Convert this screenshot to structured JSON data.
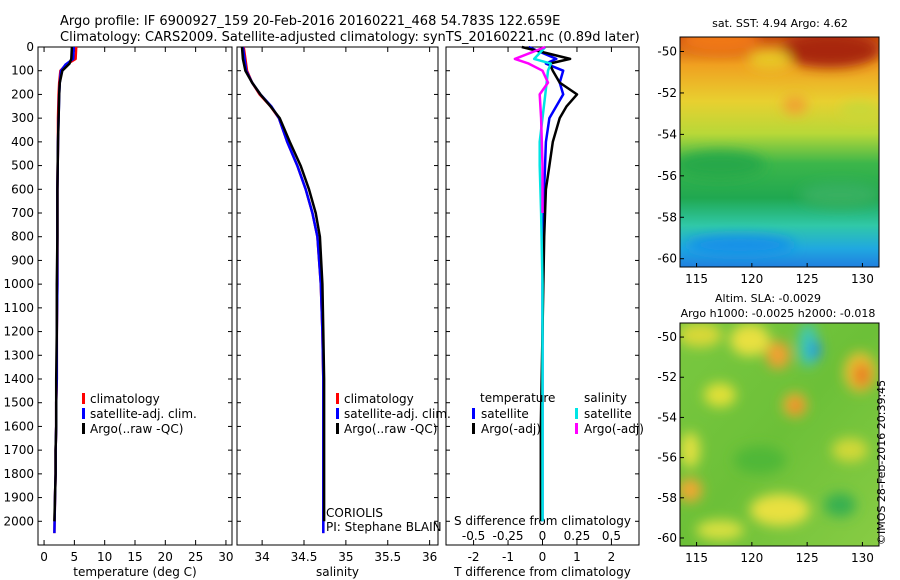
{
  "header": {
    "line1": "Argo profile: IF 6900927_159 20-Feb-2016 20160221_468 54.783S 122.659E",
    "line2": "Climatology: CARS2009. Satellite-adjusted climatology: synTS_20160221.nc (0.89d later)"
  },
  "colors": {
    "climatology": "#ff0000",
    "satellite": "#0000ff",
    "argo": "#000000",
    "sal_satellite": "#00e5e5",
    "sal_argo": "#ff00ff"
  },
  "chart_data": [
    {
      "id": "temperature",
      "type": "line",
      "xlabel": "temperature (deg C)",
      "xlim": [
        -1,
        31
      ],
      "xticks": [
        0,
        5,
        10,
        15,
        20,
        25,
        30
      ],
      "ylim": [
        0,
        2100
      ],
      "yticks": [
        0,
        100,
        200,
        300,
        400,
        500,
        600,
        700,
        800,
        900,
        1000,
        1100,
        1200,
        1300,
        1400,
        1500,
        1600,
        1700,
        1800,
        1900,
        2000
      ],
      "legend": [
        "climatology",
        "satellite-adj. clim.",
        "Argo(..raw -QC)"
      ],
      "series": [
        {
          "name": "climatology",
          "color": "#ff0000",
          "x": [
            5.3,
            5.2,
            3.6,
            2.7,
            2.5,
            2.4,
            2.3,
            2.3,
            2.2,
            2.2,
            2.2,
            2.1,
            2.1,
            2.0,
            2.0,
            1.9,
            1.9,
            1.8,
            1.7
          ],
          "y": [
            0,
            50,
            75,
            100,
            150,
            200,
            300,
            400,
            600,
            800,
            1000,
            1200,
            1400,
            1500,
            1600,
            1700,
            1800,
            1900,
            2050
          ]
        },
        {
          "name": "satellite",
          "color": "#0000ff",
          "x": [
            4.9,
            4.8,
            3.5,
            2.8,
            2.6,
            2.5,
            2.4,
            2.3,
            2.2,
            2.2,
            2.2,
            2.1,
            2.1,
            2.0,
            2.0,
            1.9,
            1.9,
            1.8,
            1.7
          ],
          "y": [
            0,
            50,
            75,
            100,
            150,
            200,
            300,
            400,
            600,
            800,
            1000,
            1200,
            1400,
            1500,
            1600,
            1700,
            1800,
            1900,
            2050
          ]
        },
        {
          "name": "argo",
          "color": "#000000",
          "x": [
            4.6,
            4.5,
            4.2,
            3.0,
            2.6,
            2.5,
            2.4,
            2.3,
            2.2,
            2.2,
            2.1,
            2.1,
            2.0,
            2.0,
            1.9,
            1.9,
            1.8,
            1.7
          ],
          "y": [
            0,
            50,
            70,
            100,
            150,
            200,
            300,
            400,
            600,
            800,
            1000,
            1200,
            1400,
            1600,
            1700,
            1800,
            1900,
            2000
          ]
        }
      ]
    },
    {
      "id": "salinity",
      "type": "line",
      "xlabel": "salinity",
      "xlim": [
        33.7,
        36.1
      ],
      "xticks": [
        34,
        34.5,
        35,
        35.5,
        36
      ],
      "xtick_labels": [
        "34",
        "34.5",
        "35",
        "35.5",
        "36"
      ],
      "ylim": [
        0,
        2100
      ],
      "legend": [
        "climatology",
        "satellite-adj. clim.",
        "Argo(..raw -QC)"
      ],
      "annotation": [
        "CORIOLIS",
        "PI: Stephane BLAIN"
      ],
      "series": [
        {
          "name": "climatology",
          "color": "#ff0000",
          "x": [
            33.78,
            33.8,
            33.82,
            33.88,
            33.97,
            34.1,
            34.2,
            34.3,
            34.42,
            34.52,
            34.6,
            34.66,
            34.7,
            34.72,
            34.73,
            34.73,
            34.73,
            34.73
          ],
          "y": [
            0,
            50,
            100,
            150,
            200,
            250,
            300,
            400,
            500,
            600,
            700,
            800,
            1000,
            1200,
            1400,
            1600,
            1800,
            2050
          ]
        },
        {
          "name": "satellite",
          "color": "#0000ff",
          "x": [
            33.77,
            33.79,
            33.81,
            33.88,
            33.98,
            34.11,
            34.2,
            34.3,
            34.42,
            34.52,
            34.6,
            34.66,
            34.7,
            34.72,
            34.73,
            34.73,
            34.73,
            34.73
          ],
          "y": [
            0,
            50,
            100,
            150,
            200,
            250,
            300,
            400,
            500,
            600,
            700,
            800,
            1000,
            1200,
            1400,
            1600,
            1800,
            2050
          ]
        },
        {
          "name": "argo",
          "color": "#000000",
          "x": [
            33.76,
            33.77,
            33.8,
            33.88,
            33.98,
            34.1,
            34.21,
            34.33,
            34.46,
            34.56,
            34.64,
            34.69,
            34.72,
            34.73,
            34.74,
            34.74,
            34.74,
            34.74
          ],
          "y": [
            0,
            50,
            100,
            150,
            200,
            250,
            300,
            400,
            500,
            600,
            700,
            800,
            1000,
            1200,
            1400,
            1600,
            1800,
            2000
          ]
        }
      ]
    },
    {
      "id": "difference",
      "type": "line",
      "xlabel": "T difference from climatology",
      "top_label": "S difference from climatology",
      "xlim": [
        -2.8,
        2.8
      ],
      "xticks": [
        -2,
        -1,
        0,
        1,
        2
      ],
      "xtick_labels": [
        "-2",
        "-1",
        "0",
        "1",
        "2"
      ],
      "sticks": [
        -0.5,
        -0.25,
        0,
        0.25,
        0.5
      ],
      "stick_labels": [
        "-0.5",
        "-0.25",
        "0",
        "0.25",
        "0.5"
      ],
      "ylim": [
        0,
        2100
      ],
      "legend_left_title": "temperature",
      "legend_right_title": "salinity",
      "legend_left": [
        "satellite",
        "Argo(-adj)"
      ],
      "legend_right": [
        "satellite",
        "Argo(-adj)"
      ],
      "series": [
        {
          "name": "T satellite",
          "color": "#0000ff",
          "x": [
            -0.4,
            0.4,
            0.1,
            0.6,
            0.5,
            0.6,
            0.2,
            0.1,
            0.05,
            0.02,
            0.0,
            0.0,
            0.0,
            0.0
          ],
          "y": [
            0,
            50,
            70,
            100,
            150,
            200,
            300,
            400,
            600,
            800,
            1000,
            1400,
            1800,
            2000
          ]
        },
        {
          "name": "T Argo",
          "color": "#000000",
          "x": [
            -0.6,
            0.8,
            0.2,
            0.3,
            0.5,
            1.0,
            0.7,
            0.5,
            0.3,
            0.2,
            0.1,
            0.05,
            0.0,
            -0.05,
            -0.05
          ],
          "y": [
            0,
            50,
            70,
            100,
            150,
            200,
            250,
            300,
            400,
            500,
            600,
            800,
            1200,
            1600,
            2000
          ]
        },
        {
          "name": "S satellite",
          "color": "#00e5e5",
          "x": [
            0.02,
            -0.06,
            0.06,
            0.04,
            0.02,
            0.0,
            -0.02,
            -0.02,
            -0.01,
            0.0,
            0.0
          ],
          "y": [
            0,
            50,
            70,
            100,
            200,
            300,
            400,
            500,
            700,
            1000,
            2000
          ]
        },
        {
          "name": "S Argo",
          "color": "#ff00ff",
          "x": [
            0.02,
            -0.2,
            -0.1,
            0.0,
            0.04,
            -0.02,
            -0.01,
            0.0,
            0.0
          ],
          "y": [
            0,
            50,
            70,
            100,
            150,
            200,
            300,
            500,
            700
          ]
        }
      ]
    },
    {
      "id": "sst_map",
      "type": "heatmap",
      "title": "sat. SST: 4.94 Argo: 4.62",
      "xticks": [
        115,
        120,
        125,
        130
      ],
      "yticks": [
        -50,
        -52,
        -54,
        -56,
        -58,
        -60
      ],
      "xlim": [
        113.5,
        131.5
      ],
      "ylim": [
        -60.4,
        -49.3
      ]
    },
    {
      "id": "sla_map",
      "type": "heatmap",
      "title": "Altim. SLA: -0.0029",
      "subtitle": "Argo h1000: -0.0025 h2000: -0.018",
      "xticks": [
        115,
        120,
        125,
        130
      ],
      "yticks": [
        -50,
        -52,
        -54,
        -56,
        -58,
        -60
      ],
      "xlim": [
        113.5,
        131.5
      ],
      "ylim": [
        -60.4,
        -49.3
      ]
    }
  ],
  "stamp": "©IMOS 28-Feb-2016 20:39:45"
}
